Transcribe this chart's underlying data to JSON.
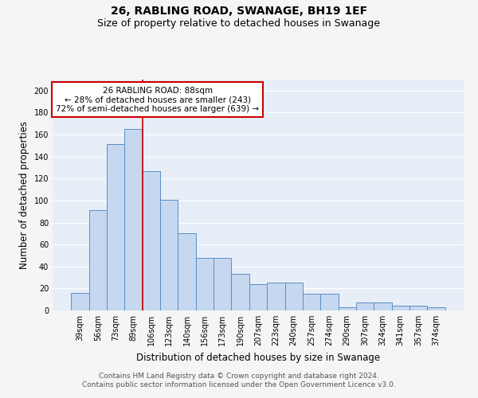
{
  "title": "26, RABLING ROAD, SWANAGE, BH19 1EF",
  "subtitle": "Size of property relative to detached houses in Swanage",
  "xlabel": "Distribution of detached houses by size in Swanage",
  "ylabel": "Number of detached properties",
  "bar_labels": [
    "39sqm",
    "56sqm",
    "73sqm",
    "89sqm",
    "106sqm",
    "123sqm",
    "140sqm",
    "156sqm",
    "173sqm",
    "190sqm",
    "207sqm",
    "223sqm",
    "240sqm",
    "257sqm",
    "274sqm",
    "290sqm",
    "307sqm",
    "324sqm",
    "341sqm",
    "357sqm",
    "374sqm"
  ],
  "bar_values": [
    16,
    91,
    151,
    165,
    127,
    101,
    70,
    48,
    48,
    33,
    24,
    25,
    25,
    15,
    15,
    3,
    7,
    7,
    4,
    4,
    3
  ],
  "bar_color": "#c5d8f0",
  "bar_edge_color": "#5b8ec4",
  "background_color": "#e8eef8",
  "grid_color": "#ffffff",
  "vline_x_index": 3.5,
  "vline_color": "#cc0000",
  "annotation_text": "26 RABLING ROAD: 88sqm\n← 28% of detached houses are smaller (243)\n72% of semi-detached houses are larger (639) →",
  "annotation_box_color": "#ffffff",
  "annotation_box_edge_color": "#cc0000",
  "ylim": [
    0,
    210
  ],
  "yticks": [
    0,
    20,
    40,
    60,
    80,
    100,
    120,
    140,
    160,
    180,
    200
  ],
  "footer_text": "Contains HM Land Registry data © Crown copyright and database right 2024.\nContains public sector information licensed under the Open Government Licence v3.0.",
  "title_fontsize": 10,
  "subtitle_fontsize": 9,
  "xlabel_fontsize": 8.5,
  "ylabel_fontsize": 8.5,
  "tick_fontsize": 7,
  "annotation_fontsize": 7.5,
  "footer_fontsize": 6.5
}
